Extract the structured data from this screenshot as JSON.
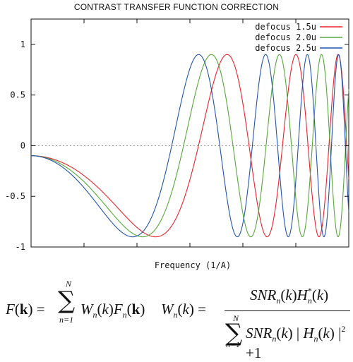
{
  "chart_data": {
    "type": "line",
    "title": "CONTRAST TRANSFER FUNCTION CORRECTION",
    "xlabel": "Frequency (1/A)",
    "ylabel": "",
    "ylim": [
      -1,
      1.25
    ],
    "yticks": [
      "1",
      "0.5",
      "0",
      "-0.5",
      "-1"
    ],
    "ytick_values": [
      1,
      0.5,
      0,
      -0.5,
      -1
    ],
    "x_tick_labels_shown": false,
    "grid": false,
    "zero_line": "dotted",
    "legend_position": "top-right",
    "series": [
      {
        "name": "defocus 1.5u",
        "color": "#e8242b",
        "defocus": 1.5
      },
      {
        "name": "defocus 2.0u",
        "color": "#56a83a",
        "defocus": 2.0
      },
      {
        "name": "defocus 2.5u",
        "color": "#2454b0",
        "defocus": 2.5
      }
    ]
  },
  "equations": {
    "eq1": {
      "lhs": "F(k) =",
      "sum_upper": "N",
      "sum_lower": "n=1",
      "body": "W_n(k) F_n(k)"
    },
    "eq2": {
      "lhs": "W_n(k) =",
      "numerator": "SNR_n(k) H_n*(k)",
      "sum_upper": "N",
      "sum_lower": "n=1",
      "denominator": "SNR_n(k) | H_n(k) |^2 + 1"
    }
  }
}
